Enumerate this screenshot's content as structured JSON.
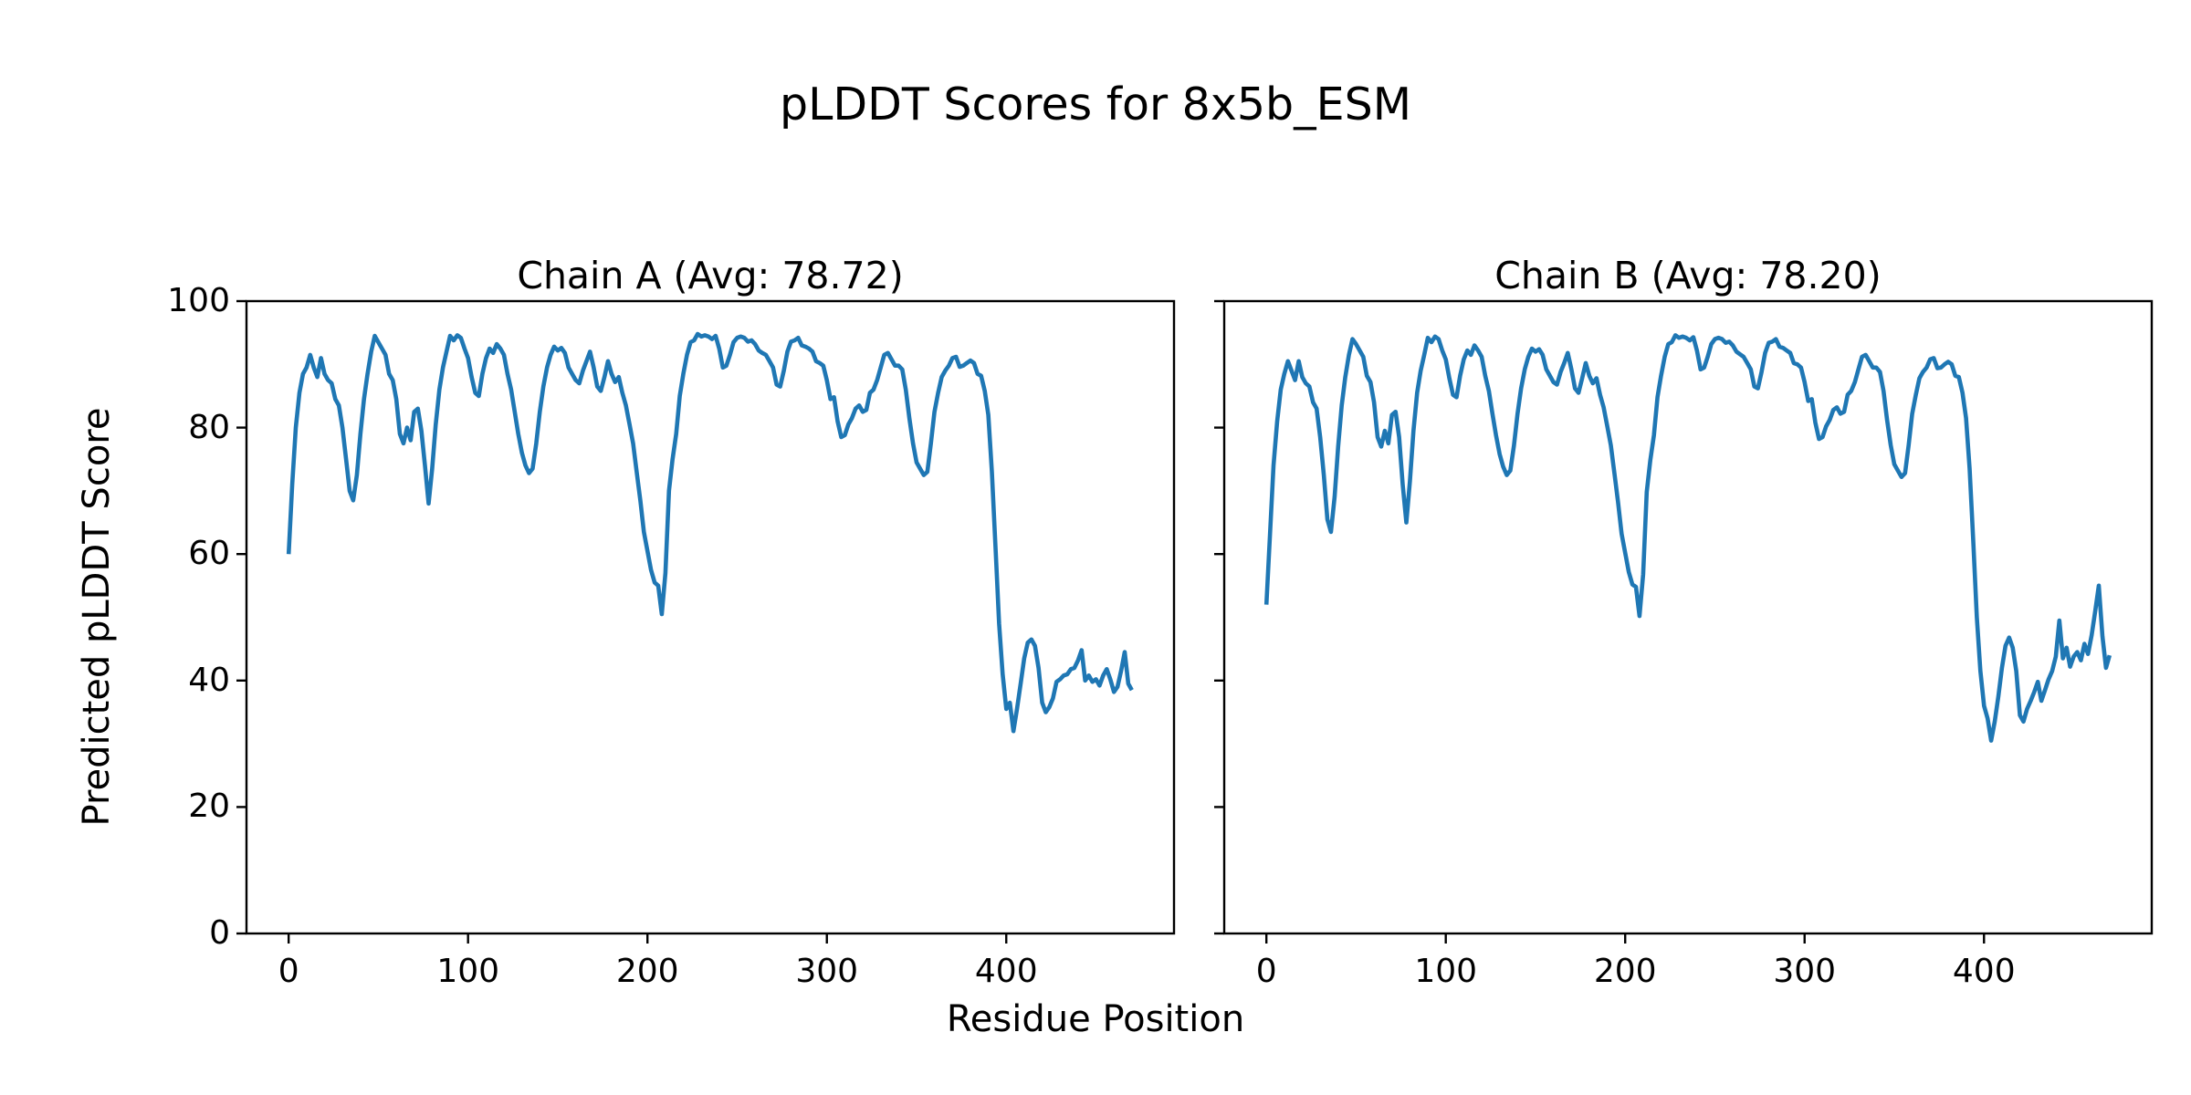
{
  "figure": {
    "background": "#ffffff",
    "text_color": "#000000"
  },
  "chart_data": {
    "type": "line",
    "suptitle": "pLDDT Scores for 8x5b_ESM",
    "xlabel": "Residue Position",
    "ylabel": "Predicted pLDDT Score",
    "line_color": "#1f77b4",
    "axis_color": "#000000",
    "grid": false,
    "legend": "none",
    "xlim": [
      -23.5,
      493.5
    ],
    "ylim": [
      0,
      100
    ],
    "xticks": [
      0,
      100,
      200,
      300,
      400
    ],
    "yticks": [
      0,
      20,
      40,
      60,
      80,
      100
    ],
    "x_start": 0,
    "x_step": 2,
    "subplots": [
      {
        "title": "Chain A (Avg: 78.72)",
        "chain": "A",
        "avg": 78.72,
        "show_ytick_labels": true,
        "values": [
          60,
          71,
          80,
          85.5,
          88.5,
          89.5,
          91.5,
          89.5,
          88,
          91,
          88.5,
          87.5,
          87,
          84.5,
          83.5,
          80,
          75,
          70,
          68.5,
          72.5,
          79,
          84.5,
          88.5,
          92,
          94.5,
          93.5,
          92.5,
          91.5,
          88.5,
          87.5,
          84.5,
          79,
          77.5,
          80,
          78,
          82.5,
          83,
          79.5,
          74,
          68,
          73.5,
          80.5,
          86,
          89.5,
          92,
          94.5,
          93.8,
          94.6,
          94.2,
          92.5,
          91,
          88,
          85.5,
          85,
          88.5,
          91,
          92.5,
          91.8,
          93.2,
          92.5,
          91.5,
          88.5,
          86,
          82.5,
          79,
          76,
          74,
          72.8,
          73.5,
          77.5,
          82.5,
          86.5,
          89.5,
          91.5,
          92.8,
          92.2,
          92.6,
          91.8,
          89.5,
          88.5,
          87.5,
          87,
          89,
          90.5,
          92,
          89.5,
          86.5,
          85.8,
          88,
          90.5,
          88.5,
          87.2,
          88,
          85.5,
          83.5,
          80.5,
          77.5,
          73,
          68.5,
          63.5,
          60.5,
          57.5,
          55.5,
          55,
          50.5,
          57,
          70,
          75,
          79,
          85,
          88.5,
          91.5,
          93.5,
          93.8,
          94.8,
          94.4,
          94.6,
          94.4,
          94,
          94.5,
          92.5,
          89.5,
          89.8,
          91.5,
          93.5,
          94.2,
          94.4,
          94.2,
          93.6,
          93.8,
          93.2,
          92.2,
          91.8,
          91.5,
          90.5,
          89.5,
          86.8,
          86.5,
          89,
          92,
          93.6,
          93.8,
          94.2,
          93,
          92.8,
          92.5,
          92,
          90.5,
          90.2,
          89.8,
          87.5,
          84.5,
          84.8,
          81,
          78.5,
          78.8,
          80.5,
          81.5,
          83,
          83.5,
          82.5,
          82.8,
          85.5,
          86,
          87.5,
          89.5,
          91.5,
          91.8,
          90.8,
          89.8,
          89.8,
          89.2,
          86,
          81.5,
          77.5,
          74.5,
          73.5,
          72.5,
          73,
          77.5,
          82.5,
          85.5,
          88,
          89,
          89.8,
          91,
          91.2,
          89.6,
          89.8,
          90.2,
          90.6,
          90.2,
          88.5,
          88.2,
          85.8,
          82,
          73,
          61,
          49,
          41,
          35.5,
          36.5,
          32,
          35.5,
          39.5,
          43.5,
          46,
          46.5,
          45.5,
          42,
          36.5,
          35,
          35.8,
          37.2,
          39.8,
          40.2,
          40.8,
          41,
          41.8,
          42,
          43.2,
          44.8,
          40,
          40.8,
          39.8,
          40.2,
          39.2,
          40.8,
          41.8,
          40.2,
          38.2,
          39,
          41.5,
          44.5,
          39.5,
          38.5
        ]
      },
      {
        "title": "Chain B (Avg: 78.20)",
        "chain": "B",
        "avg": 78.2,
        "show_ytick_labels": false,
        "values": [
          52,
          63,
          74,
          81,
          86,
          88.5,
          90.5,
          89,
          87.5,
          90.5,
          88,
          87,
          86.5,
          84,
          83,
          78.5,
          72.5,
          65.5,
          63.5,
          69,
          77,
          83.5,
          88,
          91.5,
          94,
          93.2,
          92.2,
          91.2,
          88.2,
          87.2,
          84,
          78.5,
          77,
          79.5,
          77.5,
          82,
          82.5,
          78.5,
          71,
          65,
          71.5,
          79.5,
          85.5,
          89,
          91.5,
          94.2,
          93.5,
          94.4,
          94,
          92.2,
          90.8,
          87.8,
          85.2,
          84.8,
          88.2,
          90.8,
          92.2,
          91.5,
          93,
          92.2,
          91.2,
          88.2,
          85.8,
          82.2,
          78.8,
          75.8,
          73.8,
          72.5,
          73.2,
          77.2,
          82.2,
          86.2,
          89.2,
          91.2,
          92.5,
          92,
          92.4,
          91.5,
          89.2,
          88.2,
          87.2,
          86.8,
          88.8,
          90.2,
          91.8,
          89.2,
          86.2,
          85.5,
          87.8,
          90.2,
          88.2,
          87,
          87.8,
          85.2,
          83.2,
          80.2,
          77.2,
          72.8,
          68.2,
          63.2,
          60.2,
          57.2,
          55.2,
          54.8,
          50.2,
          56.8,
          69.8,
          74.8,
          78.8,
          84.8,
          88.2,
          91.2,
          93.2,
          93.5,
          94.6,
          94.2,
          94.4,
          94.2,
          93.8,
          94.3,
          92.2,
          89.2,
          89.5,
          91.2,
          93.2,
          94,
          94.2,
          94,
          93.4,
          93.6,
          93,
          92,
          91.6,
          91.2,
          90.2,
          89.2,
          86.5,
          86.2,
          88.8,
          91.8,
          93.4,
          93.6,
          94,
          92.8,
          92.6,
          92.2,
          91.8,
          90.2,
          90,
          89.5,
          87.2,
          84.2,
          84.5,
          80.8,
          78.2,
          78.5,
          80.2,
          81.2,
          82.8,
          83.2,
          82.2,
          82.5,
          85.2,
          85.8,
          87.2,
          89.2,
          91.2,
          91.5,
          90.5,
          89.5,
          89.5,
          88.8,
          85.8,
          81.2,
          77.2,
          74.2,
          73.2,
          72.2,
          72.8,
          77.2,
          82.2,
          85.2,
          87.8,
          88.8,
          89.5,
          90.8,
          91,
          89.4,
          89.5,
          90,
          90.4,
          90,
          88.2,
          88,
          85.5,
          81.5,
          73.5,
          62,
          50,
          41.5,
          36,
          34,
          30.5,
          33.5,
          37.5,
          42,
          45.5,
          46.8,
          45.2,
          41.5,
          34.5,
          33.5,
          35.5,
          36.8,
          38.2,
          39.8,
          36.8,
          38.5,
          40.2,
          41.5,
          43.8,
          49.5,
          43.5,
          45.2,
          42.2,
          43.8,
          44.5,
          43.2,
          45.8,
          44.2,
          47.2,
          51,
          55,
          47,
          42,
          44
        ]
      }
    ]
  }
}
